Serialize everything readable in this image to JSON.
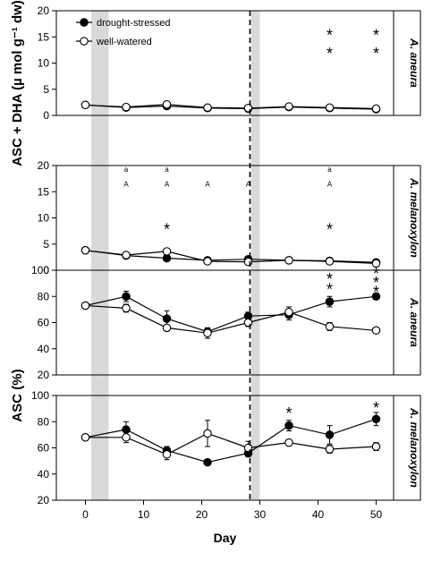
{
  "chart_data": {
    "type": "line",
    "xlabel": "Day",
    "xlim": [
      -5,
      53
    ],
    "xticks": [
      0,
      10,
      20,
      30,
      40,
      50
    ],
    "shaded_periods": [
      [
        1,
        4
      ],
      [
        28.5,
        30
      ]
    ],
    "dashed_line_day": 28.3,
    "colors": {
      "drought": "#000000",
      "watered": "#ffffff",
      "shade": "#d9d9d9"
    },
    "legend": {
      "position": "top-left",
      "entries": [
        {
          "key": "drought",
          "label": "drought-stressed",
          "marker": "filled-circle"
        },
        {
          "key": "watered",
          "label": "well-watered",
          "marker": "open-circle"
        }
      ]
    },
    "group_ylabels": [
      "ASC + DHA (µ mol g⁻¹ dw)",
      "ASC (%)"
    ],
    "panels": [
      {
        "species": "A. aneura",
        "ylim": [
          0,
          20
        ],
        "yticks": [
          0,
          5,
          10,
          15,
          20
        ],
        "series": [
          {
            "key": "drought",
            "x": [
              0,
              7,
              14,
              21,
              28,
              35,
              42,
              50
            ],
            "values": [
              2.0,
              1.5,
              1.8,
              1.4,
              1.3,
              1.6,
              1.4,
              1.2
            ],
            "err": [
              0.3,
              0.3,
              0.4,
              0.3,
              0.3,
              0.3,
              0.3,
              0.3
            ]
          },
          {
            "key": "watered",
            "x": [
              0,
              7,
              14,
              21,
              28,
              35,
              42,
              50
            ],
            "values": [
              2.0,
              1.6,
              2.1,
              1.5,
              1.4,
              1.7,
              1.5,
              1.3
            ],
            "err": [
              0.3,
              0.3,
              0.4,
              0.3,
              0.3,
              0.3,
              0.3,
              0.3
            ]
          }
        ],
        "annotations": [
          {
            "x": 42,
            "y": 16,
            "text": "*"
          },
          {
            "x": 42,
            "y": 12.5,
            "text": "*"
          },
          {
            "x": 50,
            "y": 16,
            "text": "*"
          },
          {
            "x": 50,
            "y": 12.5,
            "text": "*"
          }
        ]
      },
      {
        "species": "A. melanoxylon",
        "ylim": [
          0,
          20
        ],
        "yticks": [
          0,
          5,
          10,
          15,
          20
        ],
        "series": [
          {
            "key": "drought",
            "x": [
              0,
              7,
              14,
              21,
              28,
              35,
              42,
              50
            ],
            "values": [
              3.8,
              2.8,
              2.3,
              1.9,
              2.1,
              1.9,
              1.8,
              1.5
            ],
            "err": [
              0.3,
              0.3,
              0.4,
              0.3,
              0.3,
              0.3,
              0.3,
              0.3
            ]
          },
          {
            "key": "watered",
            "x": [
              0,
              7,
              14,
              21,
              28,
              35,
              42,
              50
            ],
            "values": [
              3.8,
              2.9,
              3.6,
              1.7,
              1.6,
              1.9,
              1.7,
              1.3
            ],
            "err": [
              0.3,
              0.3,
              0.4,
              0.3,
              0.3,
              0.3,
              0.3,
              0.3
            ]
          }
        ],
        "annotations": [
          {
            "x": 14,
            "y": 8.5,
            "text": "*"
          },
          {
            "x": 42,
            "y": 8.5,
            "text": "*"
          },
          {
            "x": 7,
            "y": 19.3,
            "text": "a"
          },
          {
            "x": 14,
            "y": 19.3,
            "text": "a"
          },
          {
            "x": 42,
            "y": 19.3,
            "text": "a"
          },
          {
            "x": 7,
            "y": 16.5,
            "text": "A"
          },
          {
            "x": 14,
            "y": 16.5,
            "text": "A"
          },
          {
            "x": 21,
            "y": 16.5,
            "text": "A"
          },
          {
            "x": 28,
            "y": 16.5,
            "text": "A"
          },
          {
            "x": 42,
            "y": 16.5,
            "text": "A"
          }
        ]
      },
      {
        "species": "A. aneura",
        "ylim": [
          20,
          100
        ],
        "yticks": [
          20,
          40,
          60,
          80,
          100
        ],
        "series": [
          {
            "key": "drought",
            "x": [
              0,
              7,
              14,
              21,
              28,
              35,
              42,
              50
            ],
            "values": [
              73,
              80,
              63,
              53,
              65,
              66,
              76,
              80
            ],
            "err": [
              2,
              4,
              6,
              3,
              3,
              4,
              4,
              2
            ]
          },
          {
            "key": "watered",
            "x": [
              0,
              7,
              14,
              21,
              28,
              35,
              42,
              50
            ],
            "values": [
              73,
              71,
              56,
              52,
              60,
              68,
              57,
              54
            ],
            "err": [
              2,
              3,
              2,
              4,
              3,
              4,
              3,
              2
            ]
          }
        ],
        "annotations": [
          {
            "x": 42,
            "y": 96,
            "text": "*"
          },
          {
            "x": 42,
            "y": 88,
            "text": "*"
          },
          {
            "x": 50,
            "y": 100,
            "text": "*"
          },
          {
            "x": 50,
            "y": 93,
            "text": "*"
          },
          {
            "x": 50,
            "y": 86,
            "text": "*"
          }
        ]
      },
      {
        "species": "A. melanoxylon",
        "ylim": [
          20,
          100
        ],
        "yticks": [
          20,
          40,
          60,
          80,
          100
        ],
        "series": [
          {
            "key": "drought",
            "x": [
              0,
              7,
              14,
              21,
              28,
              35,
              42,
              50
            ],
            "values": [
              68,
              74,
              58,
              49,
              56,
              77,
              70,
              82
            ],
            "err": [
              2,
              6,
              3,
              2,
              3,
              4,
              7,
              5
            ]
          },
          {
            "key": "watered",
            "x": [
              0,
              7,
              14,
              21,
              28,
              35,
              42,
              50
            ],
            "values": [
              68,
              68,
              55,
              71,
              60,
              64,
              59,
              61
            ],
            "err": [
              2,
              4,
              4,
              10,
              5,
              2,
              3,
              3
            ]
          }
        ],
        "annotations": [
          {
            "x": 35,
            "y": 89,
            "text": "*"
          },
          {
            "x": 50,
            "y": 93,
            "text": "*"
          }
        ]
      }
    ]
  }
}
